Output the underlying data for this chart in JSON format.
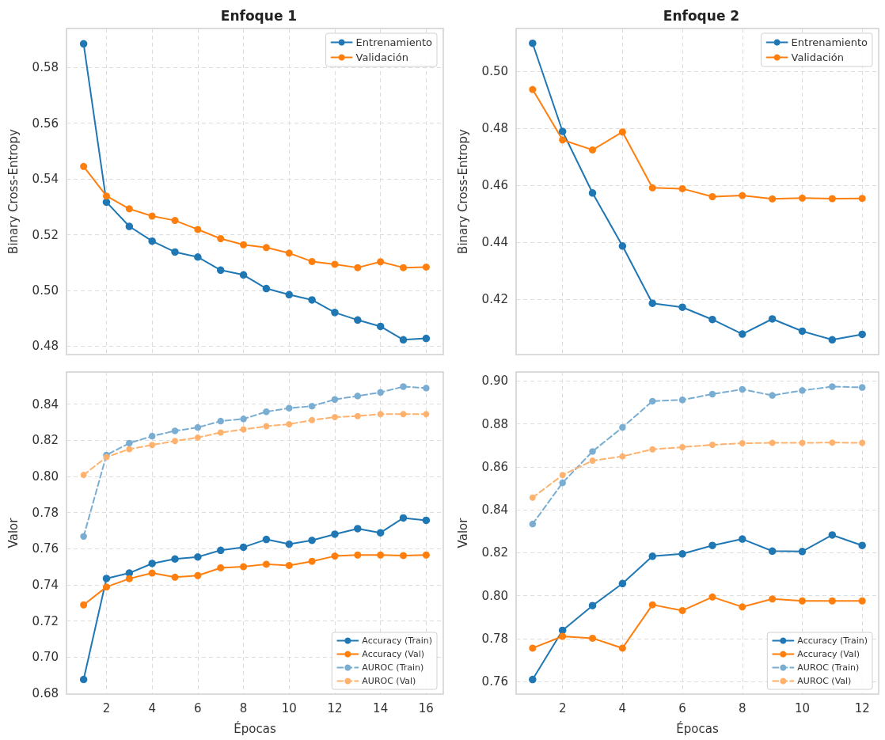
{
  "chart_data": [
    {
      "type": "line",
      "title": "Enfoque 1",
      "ylabel": "Binary Cross-Entropy",
      "x": [
        1,
        2,
        3,
        4,
        5,
        6,
        7,
        8,
        9,
        10,
        11,
        12,
        13,
        14,
        15,
        16
      ],
      "series": [
        {
          "name": "Entrenamiento",
          "color": "#1f77b4",
          "values": [
            0.5885,
            0.5317,
            0.523,
            0.5177,
            0.5138,
            0.512,
            0.5073,
            0.5056,
            0.5007,
            0.4985,
            0.4966,
            0.4921,
            0.4894,
            0.4871,
            0.4823,
            0.4828
          ]
        },
        {
          "name": "Validación",
          "color": "#ff7f0e",
          "values": [
            0.5445,
            0.5339,
            0.5293,
            0.5267,
            0.5251,
            0.5219,
            0.5186,
            0.5164,
            0.5154,
            0.5134,
            0.5104,
            0.5094,
            0.5082,
            0.5103,
            0.5082,
            0.5084
          ]
        }
      ],
      "xlim": [
        0.25,
        16.75
      ],
      "xticks": [
        2,
        4,
        6,
        8,
        10,
        12,
        14,
        16
      ],
      "ylim": [
        0.477,
        0.594
      ],
      "yticks": [
        0.48,
        {
          "value": 0.5,
          "label": "0.50"
        },
        0.52,
        0.54,
        0.56,
        0.58
      ],
      "tick_labels": "y",
      "grid": true,
      "legend": "top right",
      "marker": "circle",
      "line_style": "solid"
    },
    {
      "type": "line",
      "title": "Enfoque 2",
      "ylabel": "Binary Cross-Entropy",
      "x": [
        1,
        2,
        3,
        4,
        5,
        6,
        7,
        8,
        9,
        10,
        11,
        12
      ],
      "series": [
        {
          "name": "Entrenamiento",
          "color": "#1f77b4",
          "values": [
            0.5099,
            0.479,
            0.4574,
            0.4388,
            0.4187,
            0.4173,
            0.413,
            0.4079,
            0.4132,
            0.4089,
            0.4059,
            0.4078
          ]
        },
        {
          "name": "Validación",
          "color": "#ff7f0e",
          "values": [
            0.4937,
            0.476,
            0.4725,
            0.4788,
            0.4592,
            0.4589,
            0.4561,
            0.4565,
            0.4553,
            0.4556,
            0.4554,
            0.4555
          ]
        }
      ],
      "xlim": [
        0.45,
        12.55
      ],
      "xticks": [
        2,
        4,
        6,
        8,
        10,
        12
      ],
      "ylim": [
        0.4007,
        0.5151
      ],
      "yticks": [
        0.42,
        0.44,
        0.46,
        0.48,
        {
          "value": 0.5,
          "label": "0.50"
        }
      ],
      "tick_labels": "y",
      "grid": true,
      "legend": "top right",
      "marker": "circle",
      "line_style": "solid"
    },
    {
      "type": "line",
      "xlabel": "Épocas",
      "ylabel": "Valor",
      "x": [
        1,
        2,
        3,
        4,
        5,
        6,
        7,
        8,
        9,
        10,
        11,
        12,
        13,
        14,
        15,
        16
      ],
      "series": [
        {
          "name": "Accuracy (Train)",
          "color": "#1f77b4",
          "values": [
            0.6876,
            0.7435,
            0.7465,
            0.7518,
            0.7543,
            0.7554,
            0.7591,
            0.7608,
            0.7651,
            0.7625,
            0.7646,
            0.768,
            0.7711,
            0.7688,
            0.777,
            0.7757
          ]
        },
        {
          "name": "Accuracy (Val)",
          "color": "#ff7f0e",
          "values": [
            0.7289,
            0.7388,
            0.7434,
            0.7465,
            0.7442,
            0.7451,
            0.7494,
            0.75,
            0.7514,
            0.7507,
            0.753,
            0.7559,
            0.7565,
            0.7565,
            0.7562,
            0.7565
          ]
        },
        {
          "name": "AUROC (Train)",
          "color": "#79add2",
          "line_style": "dashed",
          "values": [
            0.7668,
            0.8118,
            0.8184,
            0.8223,
            0.8252,
            0.8271,
            0.8306,
            0.8318,
            0.8358,
            0.8378,
            0.8389,
            0.8426,
            0.8445,
            0.8465,
            0.8497,
            0.8489
          ]
        },
        {
          "name": "AUROC (Val)",
          "color": "#ffb26e",
          "line_style": "dashed",
          "values": [
            0.8008,
            0.8107,
            0.8151,
            0.8174,
            0.8196,
            0.8215,
            0.8243,
            0.826,
            0.8278,
            0.8289,
            0.8312,
            0.8328,
            0.8334,
            0.8345,
            0.8345,
            0.8345
          ]
        }
      ],
      "xlim": [
        0.25,
        16.75
      ],
      "xticks": [
        2,
        4,
        6,
        8,
        10,
        12,
        14,
        16
      ],
      "ylim": [
        0.6795,
        0.8578
      ],
      "yticks": [
        0.68,
        {
          "value": 0.7,
          "label": "0.70"
        },
        0.72,
        0.74,
        0.76,
        0.78,
        {
          "value": 0.8,
          "label": "0.80"
        },
        0.82,
        0.84
      ],
      "grid": true,
      "legend": "bottom right",
      "marker": "circle",
      "line_style": "solid"
    },
    {
      "type": "line",
      "xlabel": "Épocas",
      "ylabel": "Valor",
      "x": [
        1,
        2,
        3,
        4,
        5,
        6,
        7,
        8,
        9,
        10,
        11,
        12
      ],
      "series": [
        {
          "name": "Accuracy (Train)",
          "color": "#1f77b4",
          "values": [
            0.761,
            0.7839,
            0.7954,
            0.8057,
            0.8184,
            0.8195,
            0.8234,
            0.8264,
            0.8208,
            0.8206,
            0.8283,
            0.8234
          ]
        },
        {
          "name": "Accuracy (Val)",
          "color": "#ff7f0e",
          "values": [
            0.7756,
            0.7811,
            0.7802,
            0.7756,
            0.7958,
            0.7931,
            0.7994,
            0.7948,
            0.7985,
            0.7976,
            0.7976,
            0.7976
          ]
        },
        {
          "name": "AUROC (Train)",
          "color": "#79add2",
          "line_style": "dashed",
          "values": [
            0.8334,
            0.8526,
            0.8672,
            0.8784,
            0.8906,
            0.8912,
            0.8939,
            0.8961,
            0.8933,
            0.8956,
            0.8974,
            0.897
          ]
        },
        {
          "name": "AUROC (Val)",
          "color": "#ffb26e",
          "line_style": "dashed",
          "values": [
            0.8457,
            0.8562,
            0.8629,
            0.8649,
            0.8682,
            0.8692,
            0.8703,
            0.871,
            0.8712,
            0.8712,
            0.8713,
            0.8712
          ]
        }
      ],
      "xlim": [
        0.45,
        12.55
      ],
      "xticks": [
        2,
        4,
        6,
        8,
        10,
        12
      ],
      "ylim": [
        0.7542,
        0.9042
      ],
      "yticks": [
        0.76,
        0.78,
        {
          "value": 0.8,
          "label": "0.80"
        },
        0.82,
        0.84,
        0.86,
        0.88,
        {
          "value": 0.9,
          "label": "0.90"
        }
      ],
      "grid": true,
      "legend": "bottom right",
      "marker": "circle",
      "line_style": "solid"
    }
  ]
}
